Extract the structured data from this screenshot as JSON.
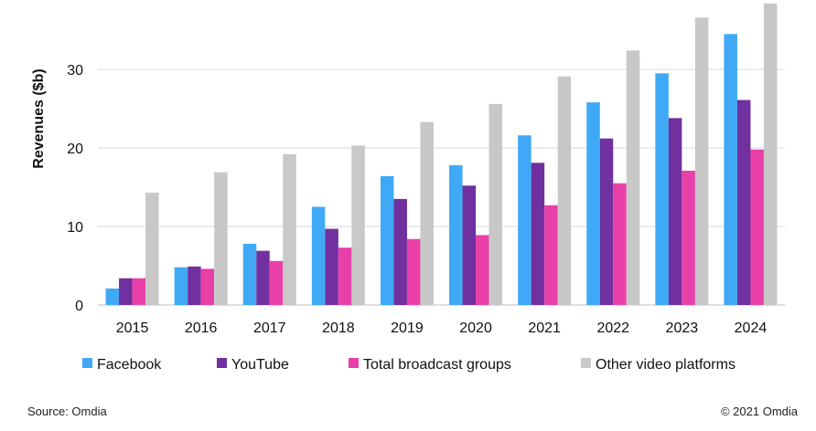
{
  "chart_data": {
    "type": "bar",
    "title": "",
    "xlabel": "",
    "ylabel": "Revenues ($b)",
    "ylim": [
      0,
      38
    ],
    "yticks": [
      0,
      10,
      20,
      30
    ],
    "grid": true,
    "legend": "bottom",
    "categories": [
      "2015",
      "2016",
      "2017",
      "2018",
      "2019",
      "2020",
      "2021",
      "2022",
      "2023",
      "2024"
    ],
    "series": [
      {
        "name": "Facebook",
        "color": "#3fa9f5",
        "values": [
          2.1,
          4.8,
          7.8,
          12.5,
          16.4,
          17.8,
          21.6,
          25.8,
          29.5,
          34.5
        ]
      },
      {
        "name": "YouTube",
        "color": "#7030a0",
        "values": [
          3.4,
          4.9,
          6.9,
          9.7,
          13.5,
          15.2,
          18.1,
          21.2,
          23.8,
          26.1
        ]
      },
      {
        "name": "Total broadcast groups",
        "color": "#e93fa8",
        "values": [
          3.4,
          4.6,
          5.6,
          7.3,
          8.4,
          8.9,
          12.7,
          15.5,
          17.1,
          19.8
        ]
      },
      {
        "name": "Other video platforms",
        "color": "#c8c8c8",
        "values": [
          14.3,
          16.9,
          19.2,
          20.3,
          23.3,
          25.6,
          29.1,
          32.4,
          36.6,
          38.4
        ]
      }
    ]
  },
  "footer": {
    "source": "Source: Omdia",
    "copyright": "© 2021 Omdia"
  }
}
